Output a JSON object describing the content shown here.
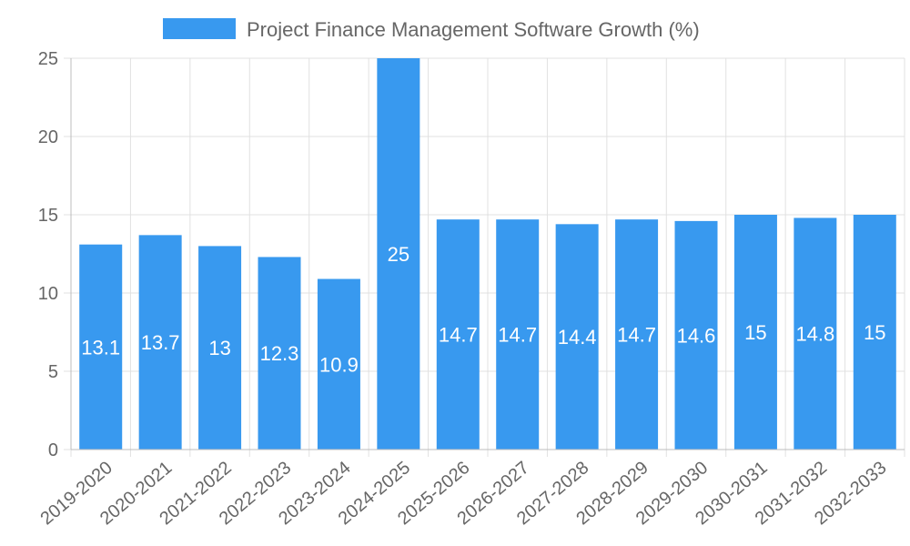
{
  "chart_data": {
    "type": "bar",
    "title": "",
    "xlabel": "",
    "ylabel": "",
    "categories": [
      "2019-2020",
      "2020-2021",
      "2021-2022",
      "2022-2023",
      "2023-2024",
      "2024-2025",
      "2025-2026",
      "2026-2027",
      "2027-2028",
      "2028-2029",
      "2029-2030",
      "2030-2031",
      "2031-2032",
      "2032-2033"
    ],
    "series": [
      {
        "name": "Project Finance Management Software Growth (%)",
        "values": [
          13.1,
          13.7,
          13,
          12.3,
          10.9,
          25,
          14.7,
          14.7,
          14.4,
          14.7,
          14.6,
          15,
          14.8,
          15
        ],
        "labels": [
          "13.1",
          "13.7",
          "13",
          "12.3",
          "10.9",
          "25",
          "14.7",
          "14.7",
          "14.4",
          "14.7",
          "14.6",
          "15",
          "14.8",
          "15"
        ],
        "color": "#3899ef"
      }
    ],
    "ylim": [
      0,
      25
    ],
    "yticks": [
      0,
      5,
      10,
      15,
      20,
      25
    ],
    "ytick_labels": [
      "0",
      "5",
      "10",
      "15",
      "20",
      "25"
    ],
    "grid": true,
    "legend_position": "top-center"
  }
}
